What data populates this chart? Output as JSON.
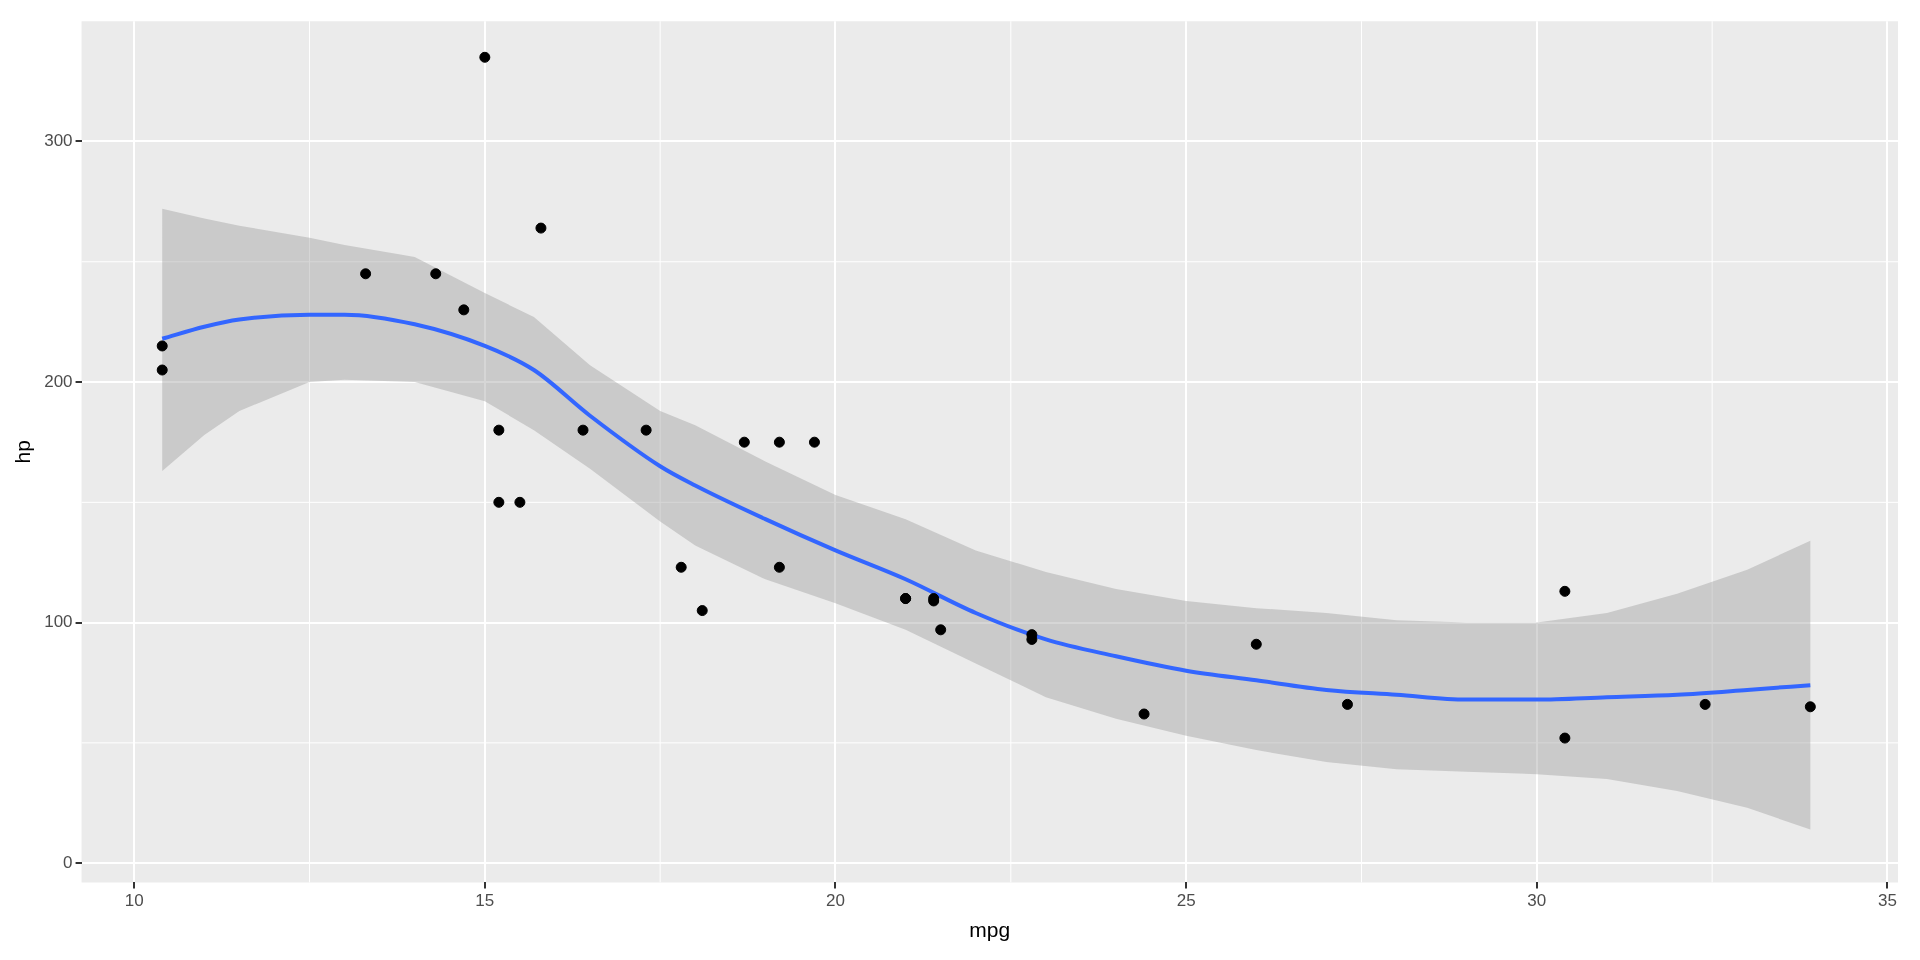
{
  "chart_data": {
    "type": "scatter",
    "xlabel": "mpg",
    "ylabel": "hp",
    "xlim": [
      9.25,
      35.15
    ],
    "ylim": [
      -8,
      350
    ],
    "xticks": [
      10,
      15,
      20,
      25,
      30,
      35
    ],
    "yticks": [
      0,
      100,
      200,
      300
    ],
    "grid": true,
    "legend": false,
    "series": [
      {
        "color": "#000000",
        "marker": "circle",
        "x": [
          21.0,
          21.0,
          22.8,
          21.4,
          18.7,
          18.1,
          14.3,
          24.4,
          22.8,
          19.2,
          17.8,
          16.4,
          17.3,
          15.2,
          10.4,
          10.4,
          14.7,
          32.4,
          30.4,
          33.9,
          21.5,
          15.5,
          15.2,
          13.3,
          19.2,
          27.3,
          26.0,
          30.4,
          15.8,
          19.7,
          15.0,
          21.4
        ],
        "values": [
          110,
          110,
          93,
          110,
          175,
          105,
          245,
          62,
          95,
          123,
          123,
          180,
          180,
          180,
          205,
          215,
          230,
          66,
          52,
          65,
          97,
          150,
          150,
          245,
          175,
          66,
          91,
          113,
          264,
          175,
          335,
          109
        ]
      },
      {
        "type": "line",
        "color": "#3366ff",
        "marker": "none",
        "x": [
          10.4,
          11,
          11.5,
          12.5,
          13,
          14,
          15,
          15.7,
          16.5,
          17.5,
          18,
          19,
          20,
          21,
          22,
          23,
          24,
          25,
          26,
          27,
          28,
          29,
          30,
          31,
          32,
          33,
          33.9
        ],
        "values": [
          218,
          223,
          226,
          228,
          228,
          224,
          215,
          205,
          186,
          165,
          157,
          143,
          130,
          118,
          104,
          93,
          86,
          80,
          76,
          72,
          70,
          68,
          68,
          69,
          70,
          72,
          74
        ],
        "lower": [
          163,
          178,
          188,
          200,
          201,
          200,
          192,
          180,
          164,
          142,
          132,
          118,
          108,
          97,
          83,
          69,
          60,
          53,
          47,
          42,
          39,
          38,
          37,
          35,
          30,
          23,
          14
        ],
        "upper": [
          272,
          268,
          265,
          260,
          257,
          252,
          237,
          227,
          207,
          188,
          182,
          167,
          153,
          143,
          130,
          121,
          114,
          109,
          106,
          104,
          101,
          100,
          100,
          104,
          112,
          122,
          134
        ]
      }
    ]
  }
}
